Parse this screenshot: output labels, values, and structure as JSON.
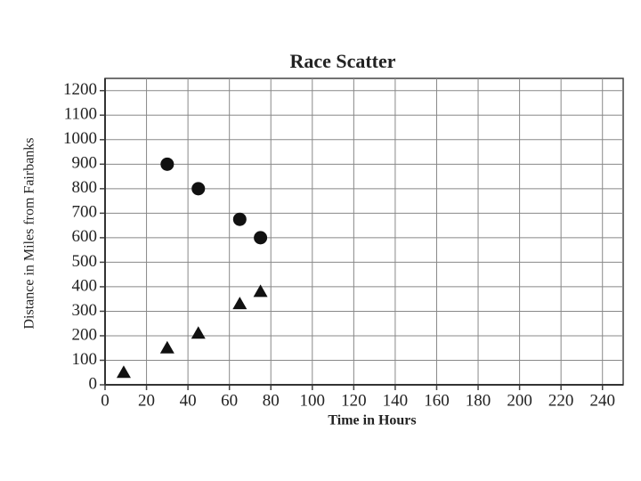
{
  "chart_data": {
    "type": "scatter",
    "title": "Race Scatter",
    "xlabel": "Time in Hours",
    "ylabel": "Distance in Miles from Fairbanks",
    "xlim": [
      0,
      250
    ],
    "ylim": [
      0,
      1250
    ],
    "xticks": [
      0,
      20,
      40,
      60,
      80,
      100,
      120,
      140,
      160,
      180,
      200,
      220,
      240
    ],
    "yticks": [
      0,
      100,
      200,
      300,
      400,
      500,
      600,
      700,
      800,
      900,
      1000,
      1100,
      1200
    ],
    "grid": true,
    "series": [
      {
        "marker": "circle",
        "color": "#111111",
        "x": [
          30,
          45,
          65,
          75
        ],
        "values": [
          900,
          800,
          675,
          600
        ]
      },
      {
        "marker": "triangle",
        "color": "#111111",
        "x": [
          9,
          30,
          45,
          65,
          75
        ],
        "values": [
          50,
          150,
          210,
          330,
          380
        ]
      }
    ]
  }
}
